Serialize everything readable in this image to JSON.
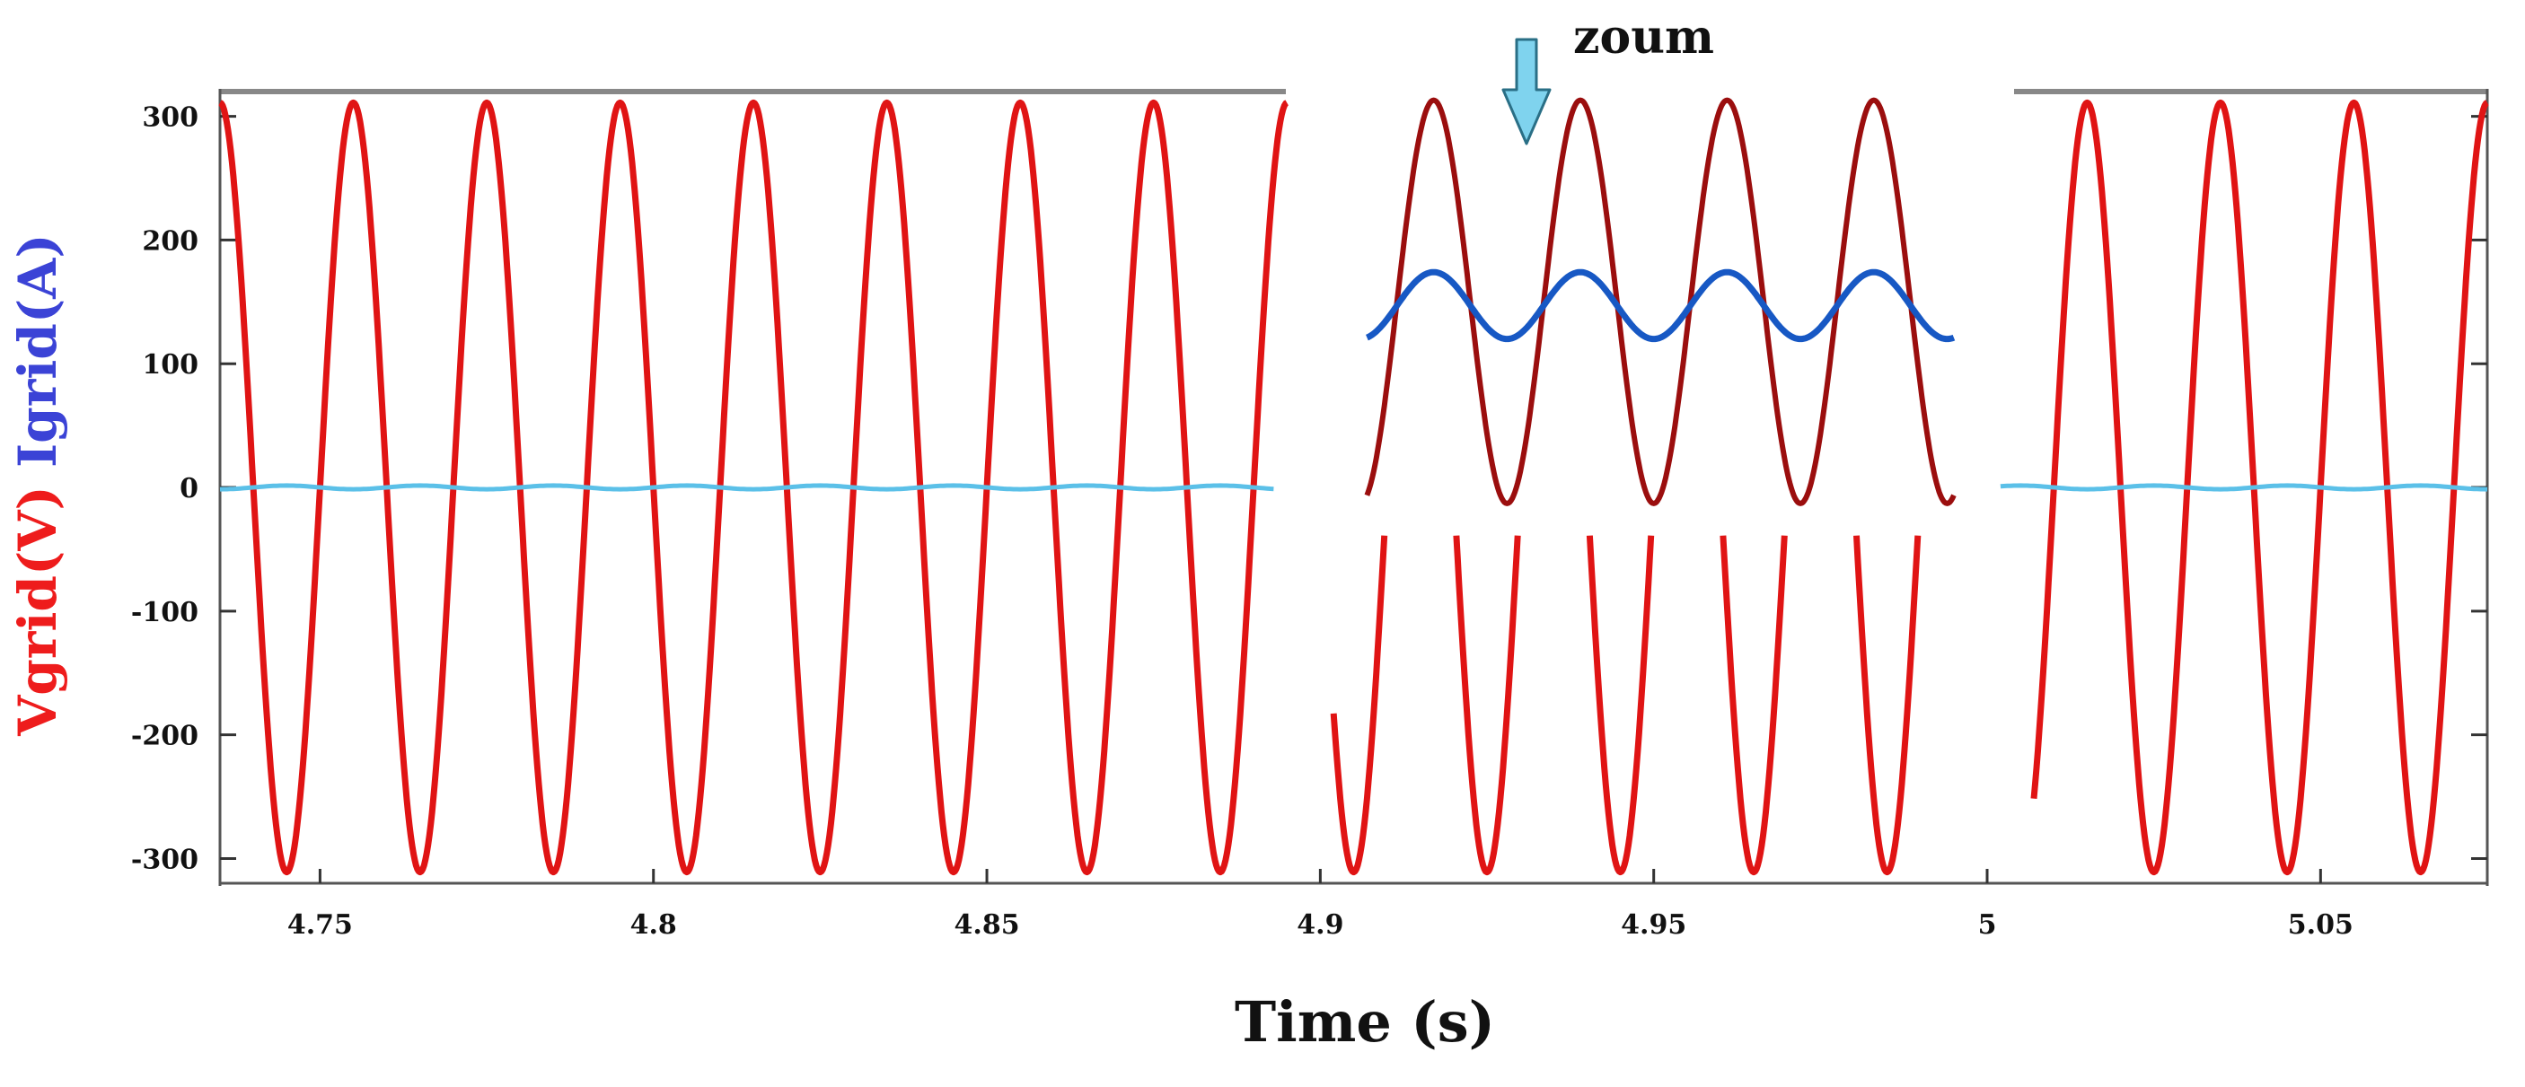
{
  "chart_data": {
    "type": "line",
    "title": "",
    "xlabel": "Time (s)",
    "ylabel_parts": [
      {
        "text": "Vgrid(V)",
        "color": "#ee1c1c"
      },
      {
        "text": " Igrid(A)",
        "color": "#3b43d6"
      }
    ],
    "xlim": [
      4.735,
      5.075
    ],
    "ylim": [
      -320,
      320
    ],
    "x_ticks": [
      4.75,
      4.8,
      4.85,
      4.9,
      4.95,
      5,
      5.05
    ],
    "x_tick_labels": [
      "4.75",
      "4.8",
      "4.85",
      "4.9",
      "4.95",
      "5",
      "5.05"
    ],
    "y_ticks": [
      300,
      200,
      100,
      0,
      -100,
      -200,
      -300
    ],
    "y_tick_labels": [
      "300",
      "200",
      "100",
      "0",
      "-100",
      "-200",
      "-300"
    ],
    "series": [
      {
        "name": "Vgrid",
        "unit": "V",
        "color": "#e01414",
        "amplitude": 311,
        "frequency_hz": 50,
        "peak_time_s": 4.755,
        "segments": [
          [
            4.735,
            4.895
          ],
          [
            4.902,
            4.995
          ],
          [
            5.007,
            5.075
          ]
        ],
        "note": "middle segment shown clipped to the negative half (zoomed region)"
      },
      {
        "name": "Igrid",
        "unit": "A",
        "color": "#5bc0e8",
        "value": 0,
        "ripple": 1.5,
        "segments": [
          [
            4.735,
            4.893
          ],
          [
            5.002,
            5.075
          ]
        ]
      }
    ],
    "zoom_inset": {
      "label": "zoum",
      "arrow_color": "#7fd3ee",
      "x_range": [
        4.907,
        4.995
      ],
      "series": [
        {
          "name": "Vgrid (zoom)",
          "color": "#9b0e0e",
          "center": 150,
          "amplitude": 163,
          "frequency_hz": 46,
          "peaks_x": [
            4.917,
            4.939,
            4.961,
            4.983
          ],
          "troughs_x": [
            4.928,
            4.95,
            4.972
          ]
        },
        {
          "name": "Igrid (zoom)",
          "color": "#1758c4",
          "center": 147,
          "amplitude": 27,
          "frequency_hz": 46,
          "peaks_x": [
            4.917,
            4.939,
            4.961,
            4.983
          ],
          "troughs_x": [
            4.928,
            4.95,
            4.972
          ]
        }
      ]
    }
  }
}
